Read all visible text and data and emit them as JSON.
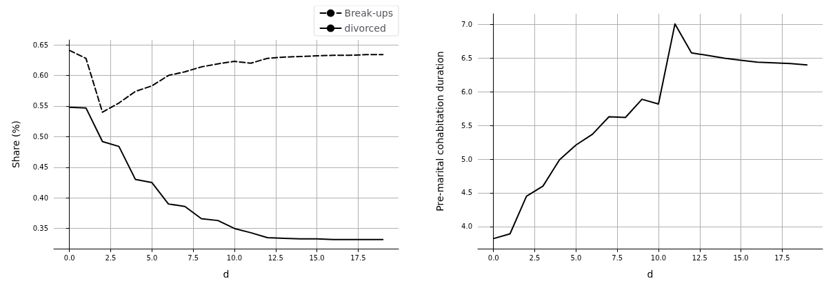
{
  "chart_data": [
    {
      "type": "line",
      "xlabel": "d",
      "ylabel": "Share (%)",
      "x": [
        0,
        1,
        2,
        3,
        4,
        5,
        6,
        7,
        8,
        9,
        10,
        11,
        12,
        13,
        14,
        15,
        16,
        17,
        18,
        19
      ],
      "xlim": [
        -0.95,
        19.95
      ],
      "xticks": [
        {
          "value": 0,
          "label": "0.0"
        },
        {
          "value": 2.5,
          "label": "2.5"
        },
        {
          "value": 5,
          "label": "5.0"
        },
        {
          "value": 7.5,
          "label": "7.5"
        },
        {
          "value": 10,
          "label": "10.0"
        },
        {
          "value": 12.5,
          "label": "12.5"
        },
        {
          "value": 15,
          "label": "15.0"
        },
        {
          "value": 17.5,
          "label": "17.5"
        }
      ],
      "ylim": [
        0.317,
        0.658
      ],
      "yticks": [
        {
          "value": 0.35,
          "label": "0.35"
        },
        {
          "value": 0.4,
          "label": "0.40"
        },
        {
          "value": 0.45,
          "label": "0.45"
        },
        {
          "value": 0.5,
          "label": "0.50"
        },
        {
          "value": 0.55,
          "label": "0.55"
        },
        {
          "value": 0.6,
          "label": "0.60"
        },
        {
          "value": 0.65,
          "label": "0.65"
        }
      ],
      "grid": true,
      "legend": "top right",
      "series": [
        {
          "name": "Break-ups",
          "color": "#000000",
          "line_style": "dashed",
          "values": [
            0.641,
            0.628,
            0.54,
            0.555,
            0.574,
            0.583,
            0.6,
            0.606,
            0.614,
            0.619,
            0.623,
            0.62,
            0.628,
            0.63,
            0.631,
            0.632,
            0.633,
            0.633,
            0.634,
            0.634
          ]
        },
        {
          "name": "divorced",
          "color": "#000000",
          "line_style": "solid",
          "values": [
            0.548,
            0.547,
            0.492,
            0.484,
            0.43,
            0.425,
            0.39,
            0.386,
            0.366,
            0.363,
            0.35,
            0.343,
            0.335,
            0.334,
            0.333,
            0.333,
            0.332,
            0.332,
            0.332,
            0.332
          ]
        }
      ]
    },
    {
      "type": "line",
      "xlabel": "d",
      "ylabel": "Pre-marital cohabitation duration",
      "x": [
        0,
        1,
        2,
        3,
        4,
        5,
        6,
        7,
        8,
        9,
        10,
        11,
        12,
        13,
        14,
        15,
        16,
        17,
        18,
        19
      ],
      "xlim": [
        -0.95,
        19.95
      ],
      "xticks": [
        {
          "value": 0,
          "label": "0.0"
        },
        {
          "value": 2.5,
          "label": "2.5"
        },
        {
          "value": 5,
          "label": "5.0"
        },
        {
          "value": 7.5,
          "label": "7.5"
        },
        {
          "value": 10,
          "label": "10.0"
        },
        {
          "value": 12.5,
          "label": "12.5"
        },
        {
          "value": 15,
          "label": "15.0"
        },
        {
          "value": 17.5,
          "label": "17.5"
        }
      ],
      "ylim": [
        3.67,
        7.16
      ],
      "yticks": [
        {
          "value": 4,
          "label": "4.0"
        },
        {
          "value": 4.5,
          "label": "4.5"
        },
        {
          "value": 5,
          "label": "5.0"
        },
        {
          "value": 5.5,
          "label": "5.5"
        },
        {
          "value": 6,
          "label": "6.0"
        },
        {
          "value": 6.5,
          "label": "6.5"
        },
        {
          "value": 7,
          "label": "7.0"
        }
      ],
      "grid": true,
      "series": [
        {
          "color": "#000000",
          "line_style": "solid",
          "values": [
            3.82,
            3.89,
            4.45,
            4.6,
            4.99,
            5.21,
            5.37,
            5.63,
            5.62,
            5.89,
            5.82,
            7.01,
            6.58,
            6.54,
            6.5,
            6.47,
            6.44,
            6.43,
            6.42,
            6.4
          ]
        }
      ]
    }
  ]
}
